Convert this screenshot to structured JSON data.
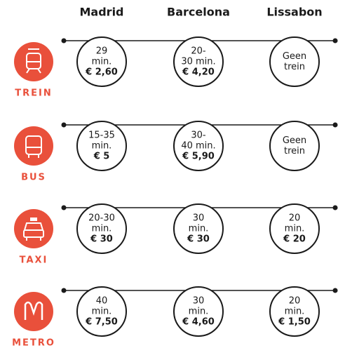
{
  "columns": [
    "Madrid",
    "Barcelona",
    "Lissabon"
  ],
  "rows": [
    {
      "mode": "TREIN",
      "cells": [
        {
          "text": [
            "29",
            "min."
          ],
          "price": "€ 2,60"
        },
        {
          "text": [
            "20-",
            "30 min."
          ],
          "price": "€ 4,20"
        },
        {
          "text": [
            "Geen",
            "trein"
          ]
        }
      ]
    },
    {
      "mode": "BUS",
      "cells": [
        {
          "text": [
            "15-35",
            "min."
          ],
          "price": "€ 5"
        },
        {
          "text": [
            "30-",
            "40 min."
          ],
          "price": "€ 5,90"
        },
        {
          "text": [
            "Geen",
            "trein"
          ]
        }
      ]
    },
    {
      "mode": "TAXI",
      "cells": [
        {
          "text": [
            "20-30",
            "min."
          ],
          "price": "€ 30"
        },
        {
          "text": [
            "30",
            "min."
          ],
          "price": "€ 30"
        },
        {
          "text": [
            "20",
            "min."
          ],
          "price": "€ 20"
        }
      ]
    },
    {
      "mode": "METRO",
      "cells": [
        {
          "text": [
            "40",
            "min."
          ],
          "price": "€ 7,50"
        },
        {
          "text": [
            "30",
            "min."
          ],
          "price": "€ 4,60"
        },
        {
          "text": [
            "20",
            "min."
          ],
          "price": "€ 1,50"
        }
      ]
    }
  ]
}
